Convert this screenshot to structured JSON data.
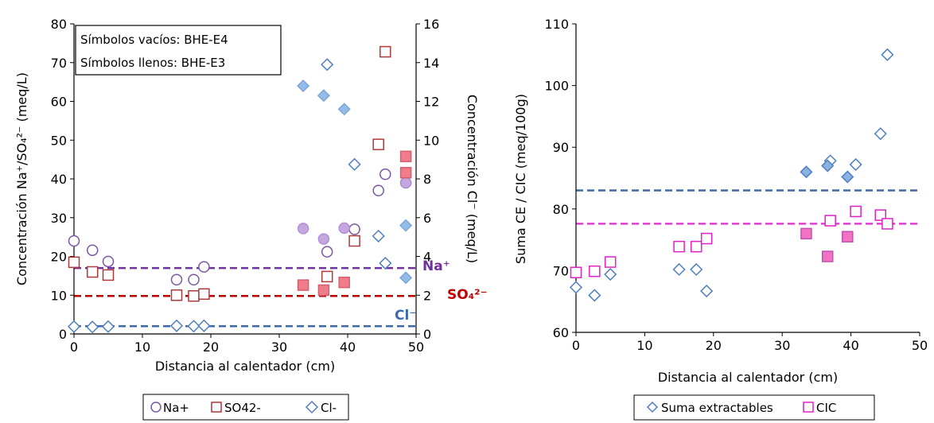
{
  "colors": {
    "na_open": "#7A56A3",
    "na_fill": "#C5A7E0",
    "so4_open": "#B03A3A",
    "so4_fill": "#F07D8C",
    "cl_open": "#4D7FBF",
    "cl_fill": "#94BCE8",
    "na_ref": "#7030A0",
    "so4_ref": "#C00000",
    "cl_ref": "#3A6BB0",
    "ce_ref": "#40699F",
    "cic_open": "#E020C8",
    "cic_fill": "#F273C3",
    "cic_ref": "#E040D0"
  },
  "left": {
    "note_line1": "Símbolos vacíos: BHE-E4",
    "note_line2": "Símbolos llenos: BHE-E3",
    "ylabel_left": "Concentración  Na⁺/SO₄²⁻ (meq/L)",
    "ylabel_right": "Concentración Cl⁻ (meq/L)",
    "xlabel": "Distancia al calentador (cm)",
    "ref_label_na": "Na⁺",
    "ref_label_so4": "SO₄²⁻",
    "ref_label_cl": "Cl⁻",
    "legend": [
      "Na+",
      "SO42-",
      "Cl-"
    ]
  },
  "right": {
    "ylabel": "Suma CE / CIC (meq/100g)",
    "xlabel": "Distancia al calentador (cm)",
    "legend": [
      "Suma extractables",
      "CIC"
    ]
  },
  "chart_data": [
    {
      "type": "scatter",
      "xlim": [
        0,
        50
      ],
      "x_ticks": [
        0,
        10,
        20,
        30,
        40,
        50
      ],
      "ylim": [
        0,
        80
      ],
      "y_ticks": [
        0,
        10,
        20,
        30,
        40,
        50,
        60,
        70,
        80
      ],
      "y2lim": [
        0,
        16
      ],
      "y2_ticks": [
        0,
        2,
        4,
        6,
        8,
        10,
        12,
        14,
        16
      ],
      "grid": false,
      "legend_position": "bottom",
      "reference_lines": [
        {
          "series": "Na+",
          "axis": "left",
          "y": 17
        },
        {
          "series": "SO42-",
          "axis": "left",
          "y": 9.8
        },
        {
          "series": "Cl-",
          "axis": "right",
          "y": 0.4
        }
      ],
      "series": [
        {
          "name": "Na+",
          "filled": false,
          "axis": "left",
          "points": [
            [
              0,
              24
            ],
            [
              2.7,
              21.6
            ],
            [
              5,
              18.7
            ],
            [
              15,
              14
            ],
            [
              17.5,
              14
            ],
            [
              19,
              17.3
            ],
            [
              37,
              21.2
            ],
            [
              41,
              27
            ],
            [
              44.5,
              37
            ],
            [
              45.5,
              41.2
            ],
            [
              48.5,
              39
            ]
          ]
        },
        {
          "name": "Na+",
          "filled": true,
          "axis": "left",
          "points": [
            [
              33.5,
              27.2
            ],
            [
              36.5,
              24.5
            ],
            [
              39.5,
              27.3
            ],
            [
              48.5,
              39
            ]
          ]
        },
        {
          "name": "SO42-",
          "filled": false,
          "axis": "left",
          "points": [
            [
              0,
              18.5
            ],
            [
              2.7,
              16
            ],
            [
              5,
              15.2
            ],
            [
              15,
              10
            ],
            [
              17.5,
              9.8
            ],
            [
              19,
              10.3
            ],
            [
              37,
              14.8
            ],
            [
              41,
              24
            ],
            [
              44.5,
              48.9
            ],
            [
              45.5,
              72.8
            ]
          ]
        },
        {
          "name": "SO42-",
          "filled": true,
          "axis": "left",
          "points": [
            [
              33.5,
              12.6
            ],
            [
              36.5,
              11.3
            ],
            [
              39.5,
              13.3
            ],
            [
              48.5,
              45.8
            ],
            [
              48.5,
              41.6
            ]
          ]
        },
        {
          "name": "Cl-",
          "filled": false,
          "axis": "right",
          "points": [
            [
              0,
              0.38
            ],
            [
              2.7,
              0.36
            ],
            [
              5,
              0.38
            ],
            [
              15,
              0.42
            ],
            [
              17.5,
              0.4
            ],
            [
              19,
              0.42
            ],
            [
              37,
              13.9
            ],
            [
              41,
              8.75
            ],
            [
              44.5,
              5.05
            ],
            [
              45.5,
              3.65
            ]
          ]
        },
        {
          "name": "Cl-",
          "filled": true,
          "axis": "right",
          "points": [
            [
              33.5,
              12.8
            ],
            [
              36.5,
              12.3
            ],
            [
              39.5,
              11.6
            ],
            [
              48.5,
              5.6
            ],
            [
              48.5,
              2.9
            ]
          ]
        }
      ]
    },
    {
      "type": "scatter",
      "xlim": [
        0,
        50
      ],
      "x_ticks": [
        0,
        10,
        20,
        30,
        40,
        50
      ],
      "ylim": [
        60,
        110
      ],
      "y_ticks": [
        60,
        70,
        80,
        90,
        100,
        110
      ],
      "grid": false,
      "legend_position": "bottom",
      "reference_lines": [
        {
          "series": "Suma extractables",
          "y": 83
        },
        {
          "series": "CIC",
          "y": 77.6
        }
      ],
      "series": [
        {
          "name": "Suma extractables",
          "filled": false,
          "points": [
            [
              0,
              67.3
            ],
            [
              2.7,
              66
            ],
            [
              5,
              69.4
            ],
            [
              15,
              70.2
            ],
            [
              17.5,
              70.2
            ],
            [
              19,
              66.7
            ],
            [
              37,
              87.8
            ],
            [
              40.7,
              87.2
            ],
            [
              44.3,
              92.2
            ],
            [
              45.3,
              105
            ]
          ]
        },
        {
          "name": "Suma extractables",
          "filled": true,
          "points": [
            [
              33.5,
              86
            ],
            [
              36.6,
              87
            ],
            [
              39.5,
              85.2
            ]
          ]
        },
        {
          "name": "CIC",
          "filled": false,
          "points": [
            [
              0,
              69.7
            ],
            [
              2.7,
              69.9
            ],
            [
              5,
              71.4
            ],
            [
              15,
              73.9
            ],
            [
              17.5,
              73.9
            ],
            [
              19,
              75.2
            ],
            [
              37,
              78.1
            ],
            [
              40.7,
              79.6
            ],
            [
              44.3,
              79
            ],
            [
              45.3,
              77.6
            ]
          ]
        },
        {
          "name": "CIC",
          "filled": true,
          "points": [
            [
              33.5,
              76
            ],
            [
              36.6,
              72.3
            ],
            [
              39.5,
              75.5
            ]
          ]
        }
      ]
    }
  ]
}
